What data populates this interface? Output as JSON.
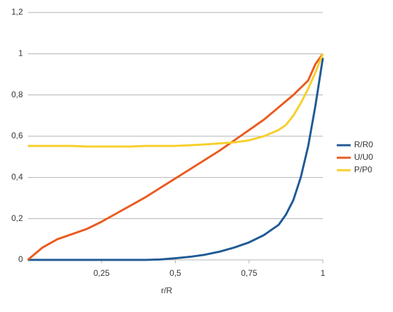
{
  "chart_data": {
    "type": "line",
    "x_label": "r/R",
    "x": [
      0,
      0.05,
      0.1,
      0.15,
      0.2,
      0.25,
      0.3,
      0.35,
      0.4,
      0.45,
      0.5,
      0.55,
      0.6,
      0.65,
      0.7,
      0.75,
      0.8,
      0.85,
      0.875,
      0.9,
      0.925,
      0.95,
      0.975,
      1
    ],
    "series": [
      {
        "name": "R/R0",
        "color": "#1f5a96",
        "values": [
          0,
          0,
          0,
          0,
          0,
          0,
          0,
          0,
          0,
          0.002,
          0.008,
          0.015,
          0.025,
          0.04,
          0.06,
          0.085,
          0.12,
          0.17,
          0.22,
          0.29,
          0.4,
          0.55,
          0.75,
          0.98
        ]
      },
      {
        "name": "U/U0",
        "color": "#ea5b1f",
        "values": [
          0,
          0.06,
          0.1,
          0.125,
          0.15,
          0.185,
          0.225,
          0.265,
          0.305,
          0.35,
          0.395,
          0.44,
          0.485,
          0.53,
          0.58,
          0.63,
          0.68,
          0.74,
          0.77,
          0.8,
          0.835,
          0.87,
          0.95,
          1
        ]
      },
      {
        "name": "P/P0",
        "color": "#f7cf2c",
        "values": [
          0.553,
          0.553,
          0.553,
          0.553,
          0.55,
          0.55,
          0.55,
          0.55,
          0.553,
          0.553,
          0.553,
          0.556,
          0.56,
          0.565,
          0.57,
          0.58,
          0.6,
          0.63,
          0.655,
          0.7,
          0.76,
          0.83,
          0.91,
          1
        ]
      }
    ],
    "xlim": [
      0,
      1
    ],
    "xticks": [
      {
        "value": 0.25,
        "label": "0,25"
      },
      {
        "value": 0.5,
        "label": "0,5"
      },
      {
        "value": 0.75,
        "label": "0,75"
      },
      1
    ],
    "ylim": [
      0,
      1.2
    ],
    "yticks": [
      0,
      {
        "value": 0.2,
        "label": "0,2"
      },
      {
        "value": 0.4,
        "label": "0,4"
      },
      {
        "value": 0.6,
        "label": "0,6"
      },
      {
        "value": 0.8,
        "label": "0,8"
      },
      1,
      {
        "value": 1.2,
        "label": "1,2"
      }
    ],
    "grid": true,
    "legend": "right"
  }
}
